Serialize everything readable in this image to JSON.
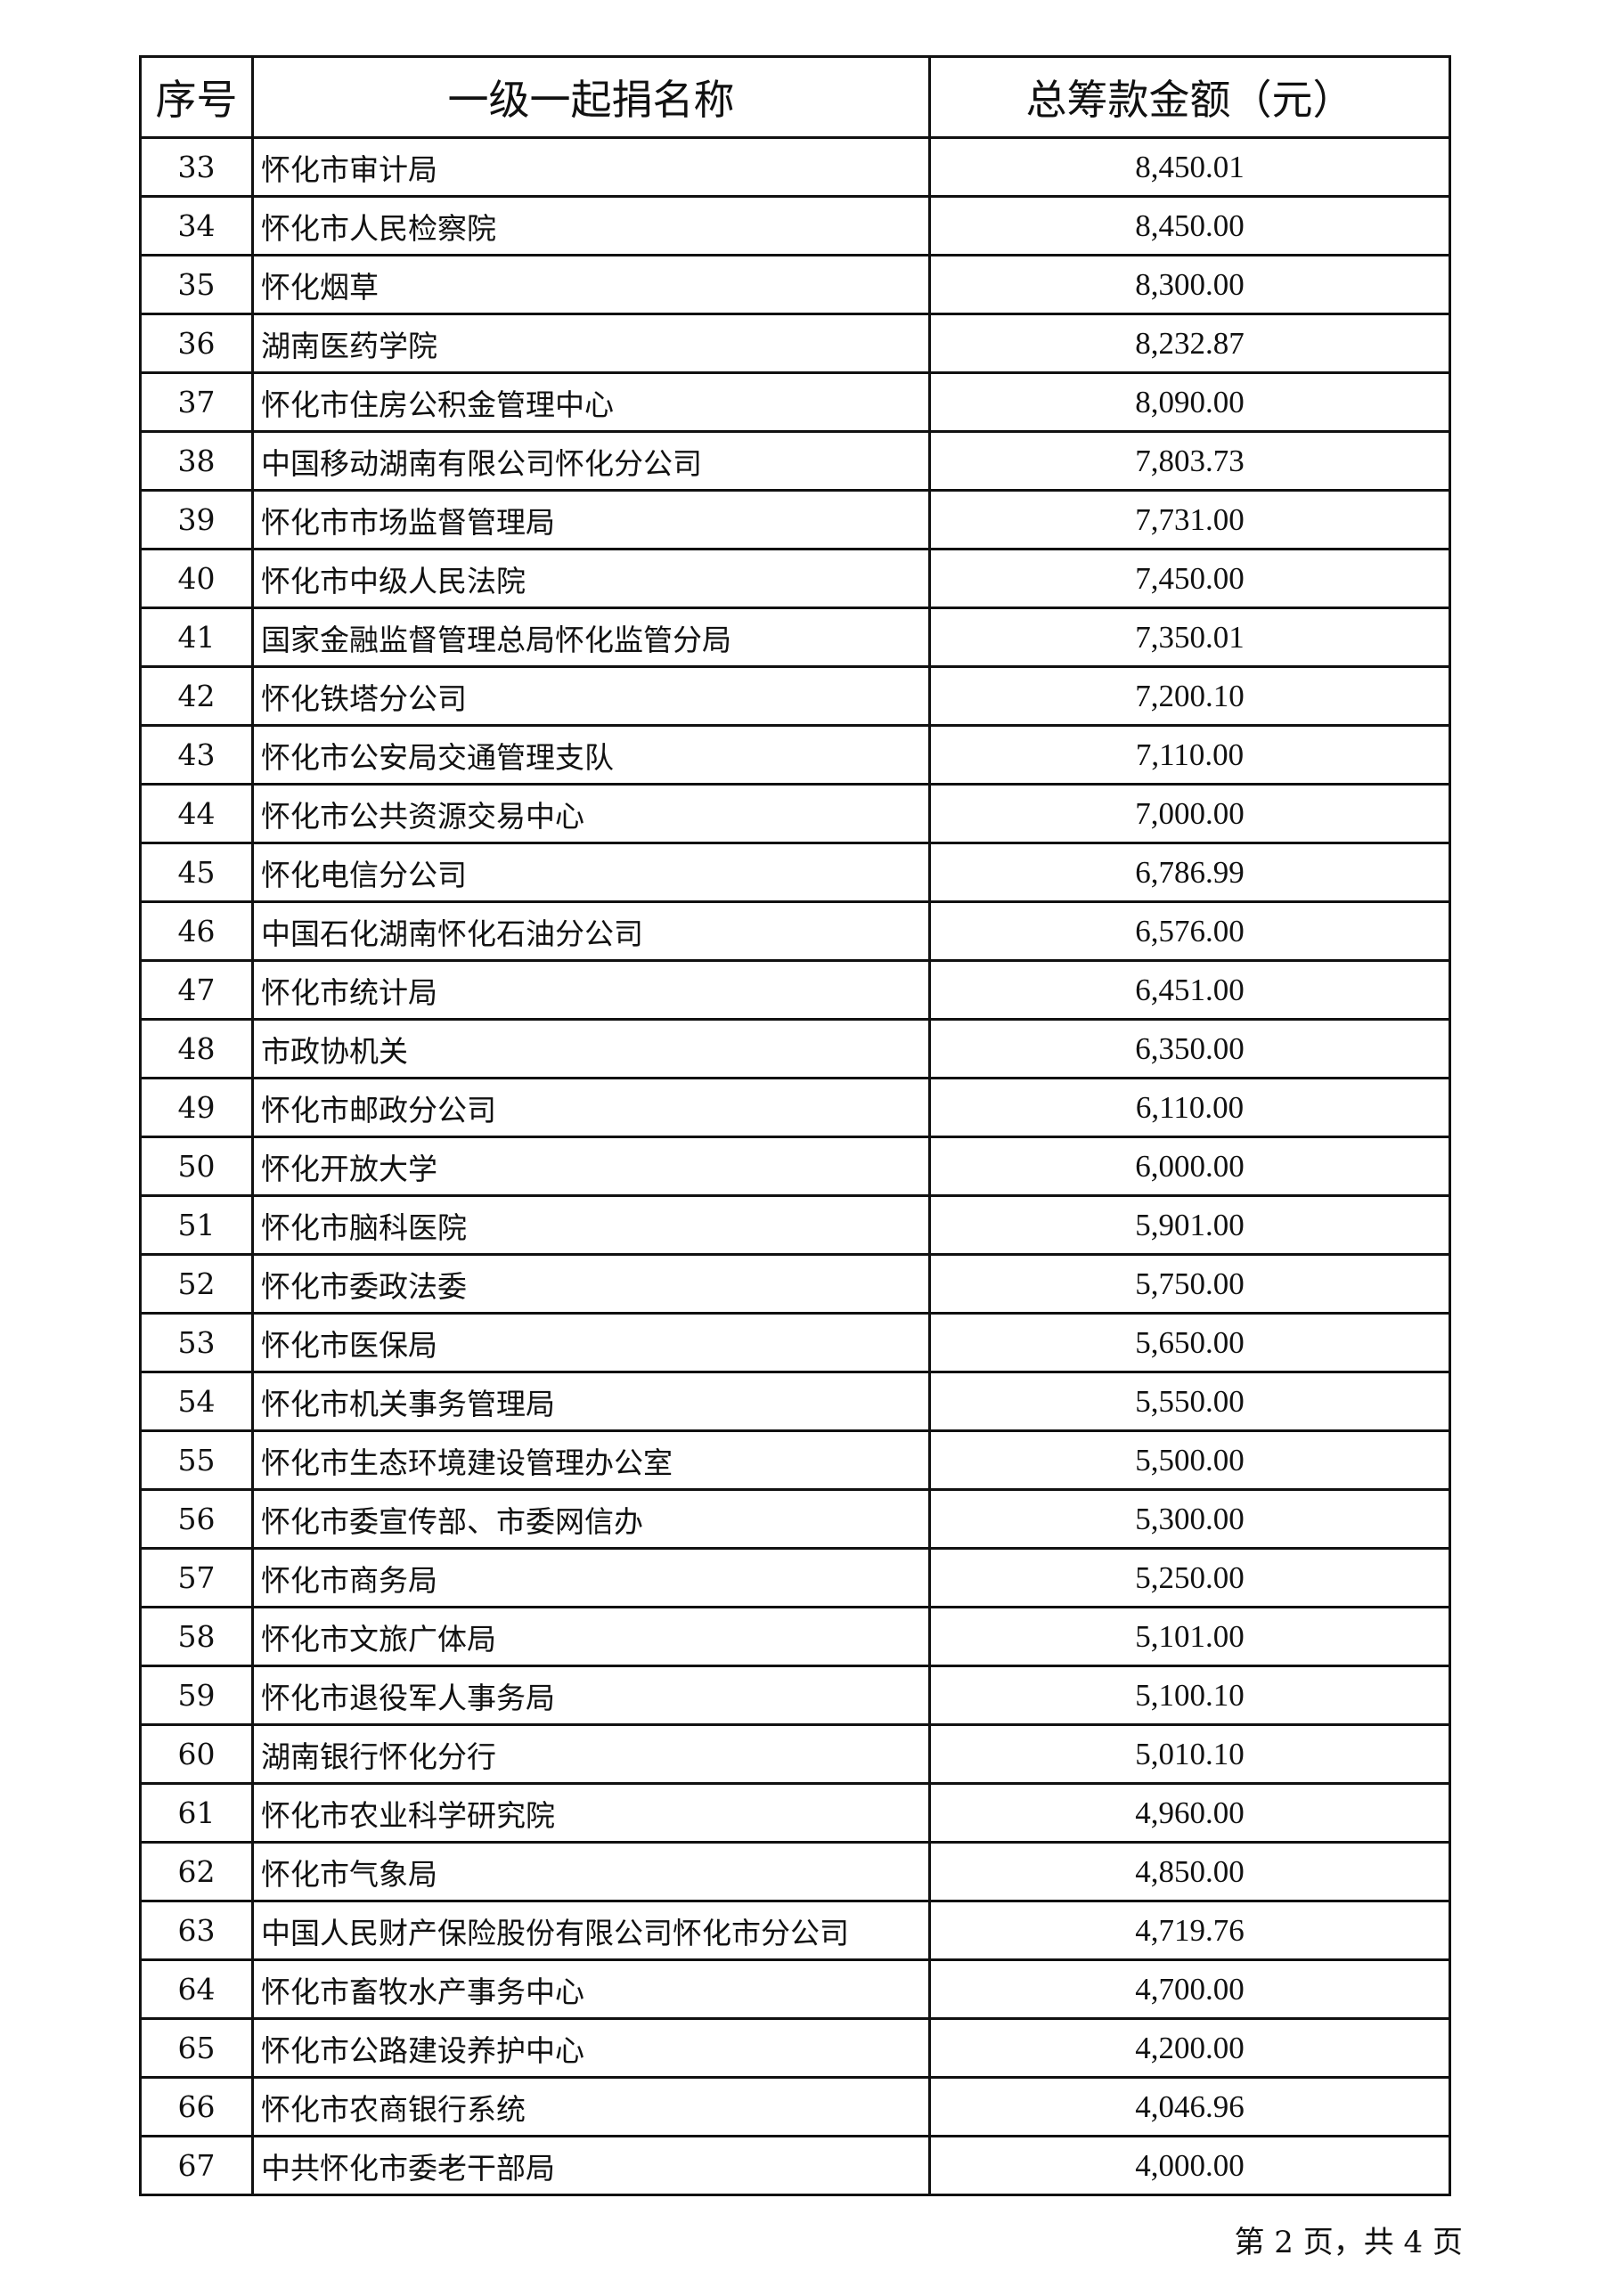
{
  "table": {
    "headers": [
      "序号",
      "一级一起捐名称",
      "总筹款金额（元）"
    ],
    "rows": [
      [
        "33",
        "怀化市审计局",
        "8,450.01"
      ],
      [
        "34",
        "怀化市人民检察院",
        "8,450.00"
      ],
      [
        "35",
        "怀化烟草",
        "8,300.00"
      ],
      [
        "36",
        "湖南医药学院",
        "8,232.87"
      ],
      [
        "37",
        "怀化市住房公积金管理中心",
        "8,090.00"
      ],
      [
        "38",
        "中国移动湖南有限公司怀化分公司",
        "7,803.73"
      ],
      [
        "39",
        "怀化市市场监督管理局",
        "7,731.00"
      ],
      [
        "40",
        "怀化市中级人民法院",
        "7,450.00"
      ],
      [
        "41",
        "国家金融监督管理总局怀化监管分局",
        "7,350.01"
      ],
      [
        "42",
        "怀化铁塔分公司",
        "7,200.10"
      ],
      [
        "43",
        "怀化市公安局交通管理支队",
        "7,110.00"
      ],
      [
        "44",
        "怀化市公共资源交易中心",
        "7,000.00"
      ],
      [
        "45",
        "怀化电信分公司",
        "6,786.99"
      ],
      [
        "46",
        "中国石化湖南怀化石油分公司",
        "6,576.00"
      ],
      [
        "47",
        "怀化市统计局",
        "6,451.00"
      ],
      [
        "48",
        "市政协机关",
        "6,350.00"
      ],
      [
        "49",
        "怀化市邮政分公司",
        "6,110.00"
      ],
      [
        "50",
        "怀化开放大学",
        "6,000.00"
      ],
      [
        "51",
        "怀化市脑科医院",
        "5,901.00"
      ],
      [
        "52",
        "怀化市委政法委",
        "5,750.00"
      ],
      [
        "53",
        "怀化市医保局",
        "5,650.00"
      ],
      [
        "54",
        "怀化市机关事务管理局",
        "5,550.00"
      ],
      [
        "55",
        "怀化市生态环境建设管理办公室",
        "5,500.00"
      ],
      [
        "56",
        "怀化市委宣传部、市委网信办",
        "5,300.00"
      ],
      [
        "57",
        "怀化市商务局",
        "5,250.00"
      ],
      [
        "58",
        "怀化市文旅广体局",
        "5,101.00"
      ],
      [
        "59",
        "怀化市退役军人事务局",
        "5,100.10"
      ],
      [
        "60",
        "湖南银行怀化分行",
        "5,010.10"
      ],
      [
        "61",
        "怀化市农业科学研究院",
        "4,960.00"
      ],
      [
        "62",
        "怀化市气象局",
        "4,850.00"
      ],
      [
        "63",
        "中国人民财产保险股份有限公司怀化市分公司",
        "4,719.76"
      ],
      [
        "64",
        "怀化市畜牧水产事务中心",
        "4,700.00"
      ],
      [
        "65",
        "怀化市公路建设养护中心",
        "4,200.00"
      ],
      [
        "66",
        "怀化市农商银行系统",
        "4,046.96"
      ],
      [
        "67",
        "中共怀化市委老干部局",
        "4,000.00"
      ]
    ]
  },
  "footer": {
    "page_info": "第 2 页，共 4 页"
  }
}
